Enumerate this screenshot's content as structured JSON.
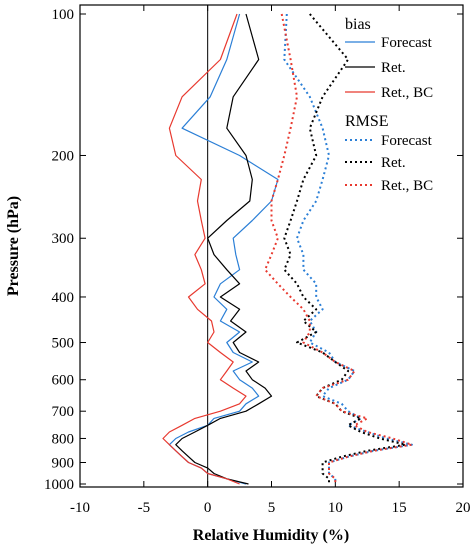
{
  "chart_data": {
    "type": "line",
    "xlabel": "Relative Humidity (%)",
    "ylabel": "Pressure (hPa)",
    "xlim": [
      -10,
      20
    ],
    "ylim": [
      1000,
      100
    ],
    "yscale": "log",
    "xticks": [
      -10,
      -5,
      0,
      5,
      10,
      15,
      20
    ],
    "yticks": [
      100,
      200,
      300,
      400,
      500,
      600,
      700,
      800,
      900,
      1000
    ],
    "legend_position": "top-right",
    "legend_groups": [
      "bias",
      "RMSE"
    ],
    "zero_line": 0,
    "pressure_levels": [
      100,
      125,
      150,
      175,
      200,
      225,
      250,
      275,
      300,
      325,
      350,
      375,
      400,
      425,
      450,
      475,
      500,
      525,
      550,
      575,
      600,
      625,
      650,
      675,
      700,
      725,
      750,
      775,
      800,
      825,
      850,
      875,
      900,
      925,
      950,
      975,
      1000
    ],
    "series": [
      {
        "name": "Forecast",
        "group": "bias",
        "color": "#2b7fd6",
        "dash": "solid",
        "values": [
          2.5,
          1.5,
          0.2,
          -2.0,
          2.5,
          5.5,
          5.0,
          3.5,
          2.0,
          2.2,
          2.5,
          1.0,
          0.5,
          1.5,
          1.0,
          2.5,
          1.5,
          2.0,
          3.5,
          2.0,
          2.5,
          3.5,
          4.0,
          3.0,
          2.5,
          0.5,
          0,
          -1.5,
          -2.5,
          -3.0,
          -2.5,
          -2.0,
          -1.5,
          -0.5,
          0,
          1.5,
          3.0
        ]
      },
      {
        "name": "Ret.",
        "group": "bias",
        "color": "#000000",
        "dash": "solid",
        "values": [
          3.0,
          4.0,
          2.0,
          1.5,
          3.0,
          3.5,
          3.3,
          1.5,
          0,
          0.5,
          1.5,
          2.5,
          1.0,
          2.5,
          1.8,
          3.0,
          2.0,
          2.5,
          4.0,
          3.0,
          3.5,
          4.5,
          5.0,
          4.0,
          3.0,
          1.0,
          0,
          -1.0,
          -2.0,
          -2.5,
          -2.0,
          -1.5,
          -1.0,
          0,
          0.5,
          1.5,
          3.2
        ]
      },
      {
        "name": "Ret., BC",
        "group": "bias",
        "color": "#e8392f",
        "dash": "solid",
        "values": [
          2.3,
          1.0,
          -2.0,
          -3.0,
          -2.5,
          -0.5,
          -0.8,
          -0.5,
          -0.2,
          -1.0,
          -0.5,
          -0.2,
          -1.5,
          -0.8,
          0.3,
          0.5,
          0,
          1.0,
          2.0,
          1.5,
          1.0,
          2.0,
          3.0,
          2.5,
          1.0,
          -1.0,
          -2.0,
          -3.0,
          -3.5,
          -3.0,
          -2.5,
          -2.0,
          -1.5,
          -0.5,
          0,
          1.5,
          2.5
        ]
      },
      {
        "name": "Forecast",
        "group": "RMSE",
        "color": "#2b7fd6",
        "dash": "dotted",
        "values": [
          6.2,
          6.0,
          8.0,
          9.0,
          9.5,
          9.0,
          8.5,
          7.5,
          7.0,
          7.5,
          7.5,
          8.5,
          8.5,
          9.0,
          8.0,
          8.5,
          8.0,
          9.5,
          10.0,
          11.5,
          11.0,
          9.5,
          9.0,
          10.5,
          11.0,
          12.0,
          11.0,
          12.5,
          14.0,
          16.0,
          13.0,
          11.0,
          9.5,
          9.5,
          9.5,
          10.0,
          10.0
        ]
      },
      {
        "name": "Ret.",
        "group": "RMSE",
        "color": "#000000",
        "dash": "dotted",
        "values": [
          8.0,
          11.0,
          9.0,
          8.0,
          8.5,
          7.5,
          7.0,
          6.5,
          6.0,
          6.5,
          6.0,
          7.0,
          7.5,
          8.5,
          7.5,
          8.5,
          7.0,
          9.0,
          10.0,
          11.0,
          10.5,
          9.0,
          8.5,
          10.0,
          10.5,
          12.0,
          11.0,
          12.0,
          13.5,
          15.5,
          12.5,
          10.5,
          9.0,
          9.0,
          9.0,
          9.5,
          9.5
        ]
      },
      {
        "name": "Ret., BC",
        "group": "RMSE",
        "color": "#e8392f",
        "dash": "dotted",
        "values": [
          5.8,
          6.5,
          7.0,
          6.5,
          6.0,
          5.5,
          5.0,
          5.0,
          5.5,
          5.0,
          4.5,
          5.5,
          6.5,
          7.5,
          8.0,
          8.0,
          7.5,
          9.0,
          10.0,
          11.5,
          11.0,
          9.0,
          8.5,
          10.0,
          10.5,
          12.5,
          11.5,
          12.5,
          14.5,
          16.0,
          13.0,
          11.0,
          9.5,
          9.5,
          9.5,
          10.0,
          10.0
        ]
      }
    ]
  }
}
